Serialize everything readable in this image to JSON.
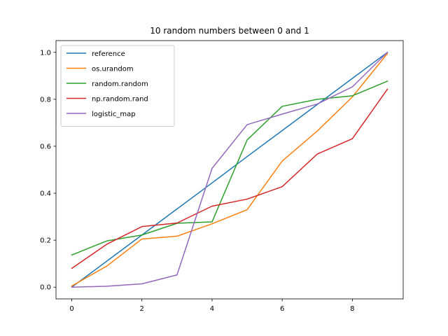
{
  "chart_data": {
    "type": "line",
    "title": "10 random numbers between 0 and 1",
    "xlabel": "",
    "ylabel": "",
    "x": [
      0,
      1,
      2,
      3,
      4,
      5,
      6,
      7,
      8,
      9
    ],
    "xlim": [
      -0.45,
      9.45
    ],
    "ylim": [
      -0.05,
      1.05
    ],
    "x_ticks": [
      0,
      2,
      4,
      6,
      8
    ],
    "y_ticks": [
      0.0,
      0.2,
      0.4,
      0.6,
      0.8,
      1.0
    ],
    "x_tick_labels": [
      "0",
      "2",
      "4",
      "6",
      "8"
    ],
    "y_tick_labels": [
      "0.0",
      "0.2",
      "0.4",
      "0.6",
      "0.8",
      "1.0"
    ],
    "grid": false,
    "legend_position": "top-left",
    "series": [
      {
        "name": "reference",
        "color": "#1f77b4",
        "values": [
          0.0,
          0.111,
          0.222,
          0.333,
          0.444,
          0.556,
          0.667,
          0.778,
          0.889,
          1.0
        ]
      },
      {
        "name": "os.urandom",
        "color": "#ff7f0e",
        "values": [
          0.005,
          0.09,
          0.205,
          0.217,
          0.27,
          0.33,
          0.537,
          0.665,
          0.81,
          0.995
        ]
      },
      {
        "name": "random.random",
        "color": "#2ca02c",
        "values": [
          0.137,
          0.197,
          0.222,
          0.272,
          0.278,
          0.627,
          0.77,
          0.8,
          0.815,
          0.877
        ]
      },
      {
        "name": "np.random.rand",
        "color": "#d62728",
        "values": [
          0.08,
          0.183,
          0.258,
          0.273,
          0.345,
          0.375,
          0.428,
          0.567,
          0.632,
          0.843
        ]
      },
      {
        "name": "logistic_map",
        "color": "#9467bd",
        "values": [
          0.0,
          0.004,
          0.014,
          0.052,
          0.506,
          0.692,
          0.737,
          0.78,
          0.853,
          1.0
        ]
      }
    ]
  }
}
